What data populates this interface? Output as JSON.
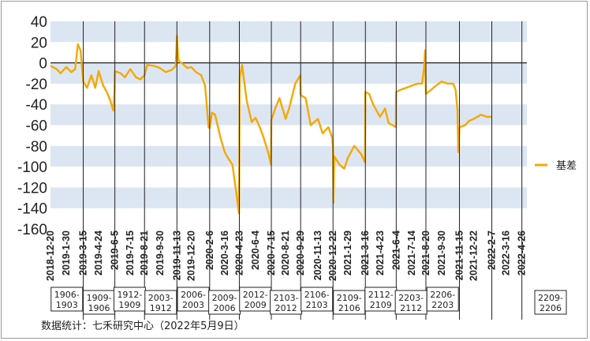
{
  "source": "数据统计：七禾研究中心（2022年5月9日）",
  "chart_data": {
    "type": "line",
    "ylim": [
      -160,
      40
    ],
    "yticks": [
      40,
      20,
      0,
      -20,
      -40,
      -60,
      -80,
      -100,
      -120,
      -140,
      -160
    ],
    "band_color": "#dce6f2",
    "line_color": "#f5a800",
    "x_start": "2018-12-20",
    "x_end": "2022-05-09",
    "xticks": [
      "2018-12-20",
      "2019-1-30",
      "2019-3-15",
      "2019-4-24",
      "2019-6-5",
      "2019-7-15",
      "2019-8-21",
      "2019-9-30",
      "2019-11-13",
      "2019-12-20",
      "2020-2-6",
      "2020-3-16",
      "2020-4-23",
      "2020-6-4",
      "2020-7-15",
      "2020-8-21",
      "2020-9-29",
      "2020-11-13",
      "2020-12-22",
      "2021-1-29",
      "2021-3-16",
      "2021-4-23",
      "2021-6-4",
      "2021-7-14",
      "2021-8-20",
      "2021-9-30",
      "2021-11-15",
      "2021-12-22",
      "2022-2-7",
      "2022-3-16",
      "2022-4-26"
    ],
    "roll_dates": [
      "2019-3-15",
      "2019-6-5",
      "2019-8-21",
      "2019-11-13",
      "2020-2-6",
      "2020-4-23",
      "2020-7-15",
      "2020-9-29",
      "2020-12-22",
      "2021-3-16",
      "2021-6-4",
      "2021-8-20",
      "2021-11-15",
      "2022-2-7",
      "2022-4-26"
    ],
    "contract_boxes": [
      {
        "label": [
          "1906-",
          "1903"
        ],
        "start": "2018-12-20",
        "end": "2019-3-15"
      },
      {
        "label": [
          "1909-",
          "1906"
        ],
        "start": "2019-3-15",
        "end": "2019-6-5"
      },
      {
        "label": [
          "1912-",
          "1909"
        ],
        "start": "2019-6-5",
        "end": "2019-8-21"
      },
      {
        "label": [
          "2003-",
          "1912"
        ],
        "start": "2019-8-21",
        "end": "2019-11-13"
      },
      {
        "label": [
          "2006-",
          "2003"
        ],
        "start": "2019-11-13",
        "end": "2020-2-6"
      },
      {
        "label": [
          "2009-",
          "2006"
        ],
        "start": "2020-2-6",
        "end": "2020-4-23"
      },
      {
        "label": [
          "2012-",
          "2009"
        ],
        "start": "2020-4-23",
        "end": "2020-7-15"
      },
      {
        "label": [
          "2103-",
          "2012"
        ],
        "start": "2020-7-15",
        "end": "2020-9-29"
      },
      {
        "label": [
          "2106-",
          "2103"
        ],
        "start": "2020-9-29",
        "end": "2020-12-22"
      },
      {
        "label": [
          "2109-",
          "2106"
        ],
        "start": "2020-12-22",
        "end": "2021-3-16"
      },
      {
        "label": [
          "2112-",
          "2109"
        ],
        "start": "2021-3-16",
        "end": "2021-6-4"
      },
      {
        "label": [
          "2203-",
          "2112"
        ],
        "start": "2021-6-4",
        "end": "2021-8-20"
      },
      {
        "label": [
          "2206-",
          "2203"
        ],
        "start": "2021-8-20",
        "end": "2021-11-15"
      },
      {
        "label": [
          "2209-",
          "2206"
        ],
        "start": "2021-11-15",
        "end": "2022-2-7"
      }
    ],
    "series": [
      {
        "name": "基差",
        "points": [
          [
            "2018-12-20",
            -3
          ],
          [
            "2019-1-5",
            -6
          ],
          [
            "2019-1-15",
            -10
          ],
          [
            "2019-1-30",
            -4
          ],
          [
            "2019-2-12",
            -9
          ],
          [
            "2019-2-22",
            -6
          ],
          [
            "2019-3-1",
            18
          ],
          [
            "2019-3-8",
            12
          ],
          [
            "2019-3-15",
            -18
          ],
          [
            "2019-3-25",
            -24
          ],
          [
            "2019-4-5",
            -12
          ],
          [
            "2019-4-15",
            -24
          ],
          [
            "2019-4-24",
            -8
          ],
          [
            "2019-5-6",
            -22
          ],
          [
            "2019-5-15",
            -28
          ],
          [
            "2019-5-24",
            -36
          ],
          [
            "2019-6-1",
            -46
          ],
          [
            "2019-6-4",
            -27
          ],
          [
            "2019-6-5",
            -8
          ],
          [
            "2019-6-20",
            -10
          ],
          [
            "2019-7-1",
            -14
          ],
          [
            "2019-7-15",
            -6
          ],
          [
            "2019-7-30",
            -14
          ],
          [
            "2019-8-10",
            -16
          ],
          [
            "2019-8-21",
            -12
          ],
          [
            "2019-8-28",
            -2
          ],
          [
            "2019-9-15",
            -3
          ],
          [
            "2019-9-30",
            -5
          ],
          [
            "2019-10-15",
            -9
          ],
          [
            "2019-10-30",
            -7
          ],
          [
            "2019-11-10",
            -3
          ],
          [
            "2019-11-13",
            26
          ],
          [
            "2019-11-17",
            2
          ],
          [
            "2019-11-28",
            -1
          ],
          [
            "2019-12-10",
            -5
          ],
          [
            "2019-12-20",
            -4
          ],
          [
            "2020-1-2",
            -9
          ],
          [
            "2020-1-15",
            -12
          ],
          [
            "2020-1-25",
            -22
          ],
          [
            "2020-2-3",
            -62
          ],
          [
            "2020-2-6",
            -63
          ],
          [
            "2020-2-12",
            -48
          ],
          [
            "2020-2-20",
            -50
          ],
          [
            "2020-3-5",
            -72
          ],
          [
            "2020-3-16",
            -86
          ],
          [
            "2020-3-25",
            -92
          ],
          [
            "2020-4-5",
            -98
          ],
          [
            "2020-4-15",
            -125
          ],
          [
            "2020-4-22",
            -145
          ],
          [
            "2020-4-24",
            -14
          ],
          [
            "2020-4-30",
            -2
          ],
          [
            "2020-5-12",
            -36
          ],
          [
            "2020-5-25",
            -57
          ],
          [
            "2020-6-4",
            -53
          ],
          [
            "2020-6-15",
            -62
          ],
          [
            "2020-6-25",
            -72
          ],
          [
            "2020-7-8",
            -88
          ],
          [
            "2020-7-14",
            -98
          ],
          [
            "2020-7-15",
            -55
          ],
          [
            "2020-7-25",
            -44
          ],
          [
            "2020-8-5",
            -34
          ],
          [
            "2020-8-21",
            -54
          ],
          [
            "2020-8-30",
            -44
          ],
          [
            "2020-9-15",
            -20
          ],
          [
            "2020-9-28",
            -12
          ],
          [
            "2020-9-29",
            -31
          ],
          [
            "2020-10-12",
            -34
          ],
          [
            "2020-10-25",
            -60
          ],
          [
            "2020-11-13",
            -54
          ],
          [
            "2020-11-25",
            -68
          ],
          [
            "2020-12-10",
            -62
          ],
          [
            "2020-12-20",
            -72
          ],
          [
            "2020-12-22",
            -82
          ],
          [
            "2020-12-23",
            -135
          ],
          [
            "2020-12-25",
            -90
          ],
          [
            "2021-1-8",
            -98
          ],
          [
            "2021-1-20",
            -102
          ],
          [
            "2021-1-29",
            -92
          ],
          [
            "2021-2-15",
            -80
          ],
          [
            "2021-3-5",
            -88
          ],
          [
            "2021-3-15",
            -96
          ],
          [
            "2021-3-16",
            -28
          ],
          [
            "2021-3-26",
            -30
          ],
          [
            "2021-4-5",
            -40
          ],
          [
            "2021-4-23",
            -52
          ],
          [
            "2021-5-6",
            -44
          ],
          [
            "2021-5-15",
            -58
          ],
          [
            "2021-5-25",
            -60
          ],
          [
            "2021-6-3",
            -62
          ],
          [
            "2021-6-4",
            -28
          ],
          [
            "2021-6-15",
            -26
          ],
          [
            "2021-6-30",
            -24
          ],
          [
            "2021-7-14",
            -22
          ],
          [
            "2021-7-30",
            -20
          ],
          [
            "2021-8-10",
            -20
          ],
          [
            "2021-8-15",
            -6
          ],
          [
            "2021-8-18",
            12
          ],
          [
            "2021-8-20",
            -30
          ],
          [
            "2021-8-30",
            -27
          ],
          [
            "2021-9-15",
            -22
          ],
          [
            "2021-9-30",
            -18
          ],
          [
            "2021-10-15",
            -20
          ],
          [
            "2021-10-30",
            -20
          ],
          [
            "2021-11-5",
            -26
          ],
          [
            "2021-11-10",
            -46
          ],
          [
            "2021-11-12",
            -86
          ],
          [
            "2021-11-15",
            -62
          ],
          [
            "2021-11-30",
            -60
          ],
          [
            "2021-12-10",
            -56
          ],
          [
            "2021-12-22",
            -54
          ],
          [
            "2022-1-10",
            -50
          ],
          [
            "2022-1-25",
            -52
          ],
          [
            "2022-2-7",
            -52
          ]
        ]
      }
    ],
    "legend": {
      "label": "基差",
      "position": "right"
    }
  }
}
